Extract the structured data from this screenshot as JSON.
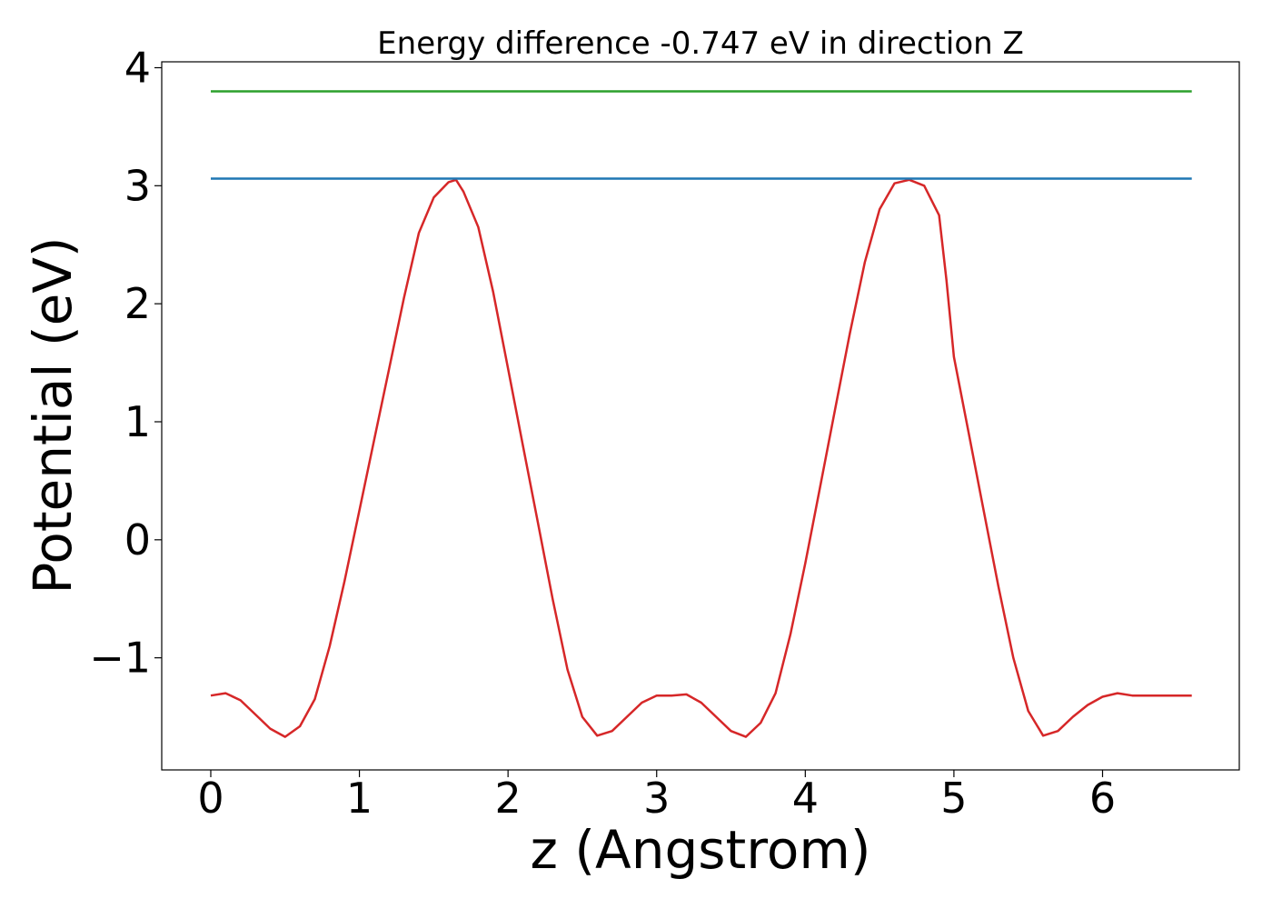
{
  "chart_data": {
    "type": "line",
    "title": "Energy difference -0.747 eV in direction Z",
    "xlabel": "z (Angstrom)",
    "ylabel": "Potential (eV)",
    "xlim": [
      -0.33,
      6.92
    ],
    "ylim": [
      -1.95,
      4.05
    ],
    "x_ticks": [
      0,
      1,
      2,
      3,
      4,
      5,
      6
    ],
    "x_tick_labels": [
      "0",
      "1",
      "2",
      "3",
      "4",
      "5",
      "6"
    ],
    "y_ticks": [
      -1,
      0,
      1,
      2,
      3,
      4
    ],
    "y_tick_labels": [
      "−1",
      "0",
      "1",
      "2",
      "3",
      "4"
    ],
    "grid": false,
    "legend": "none",
    "series": [
      {
        "color": "#d62728",
        "x": [
          0.0,
          0.1,
          0.2,
          0.3,
          0.4,
          0.5,
          0.6,
          0.7,
          0.8,
          0.9,
          1.0,
          1.1,
          1.2,
          1.3,
          1.4,
          1.5,
          1.6,
          1.65,
          1.7,
          1.8,
          1.9,
          2.0,
          2.1,
          2.2,
          2.3,
          2.4,
          2.5,
          2.6,
          2.7,
          2.8,
          2.9,
          3.0,
          3.1,
          3.2,
          3.3,
          3.4,
          3.5,
          3.6,
          3.7,
          3.8,
          3.9,
          4.0,
          4.1,
          4.2,
          4.3,
          4.4,
          4.5,
          4.6,
          4.7,
          4.8,
          4.9,
          4.95,
          5.0,
          5.1,
          5.2,
          5.3,
          5.4,
          5.5,
          5.6,
          5.7,
          5.8,
          5.9,
          6.0,
          6.1,
          6.2,
          6.3,
          6.4,
          6.5,
          6.6
        ],
        "y": [
          -1.32,
          -1.3,
          -1.36,
          -1.48,
          -1.6,
          -1.67,
          -1.58,
          -1.35,
          -0.9,
          -0.35,
          0.25,
          0.85,
          1.45,
          2.05,
          2.6,
          2.9,
          3.03,
          3.05,
          2.95,
          2.65,
          2.1,
          1.45,
          0.8,
          0.15,
          -0.5,
          -1.1,
          -1.5,
          -1.66,
          -1.62,
          -1.5,
          -1.38,
          -1.32,
          -1.32,
          -1.31,
          -1.38,
          -1.5,
          -1.62,
          -1.67,
          -1.55,
          -1.3,
          -0.8,
          -0.2,
          0.45,
          1.1,
          1.75,
          2.35,
          2.8,
          3.02,
          3.05,
          3.0,
          2.75,
          2.2,
          1.55,
          0.9,
          0.25,
          -0.4,
          -1.0,
          -1.45,
          -1.66,
          -1.62,
          -1.5,
          -1.4,
          -1.33,
          -1.3,
          -1.32,
          -1.32,
          -1.32,
          -1.32,
          -1.32
        ]
      },
      {
        "color": "#1f77b4",
        "x": [
          0.0,
          6.6
        ],
        "y": [
          3.06,
          3.06
        ]
      },
      {
        "color": "#2ca02c",
        "x": [
          0.0,
          6.6
        ],
        "y": [
          3.8,
          3.8
        ]
      }
    ]
  }
}
